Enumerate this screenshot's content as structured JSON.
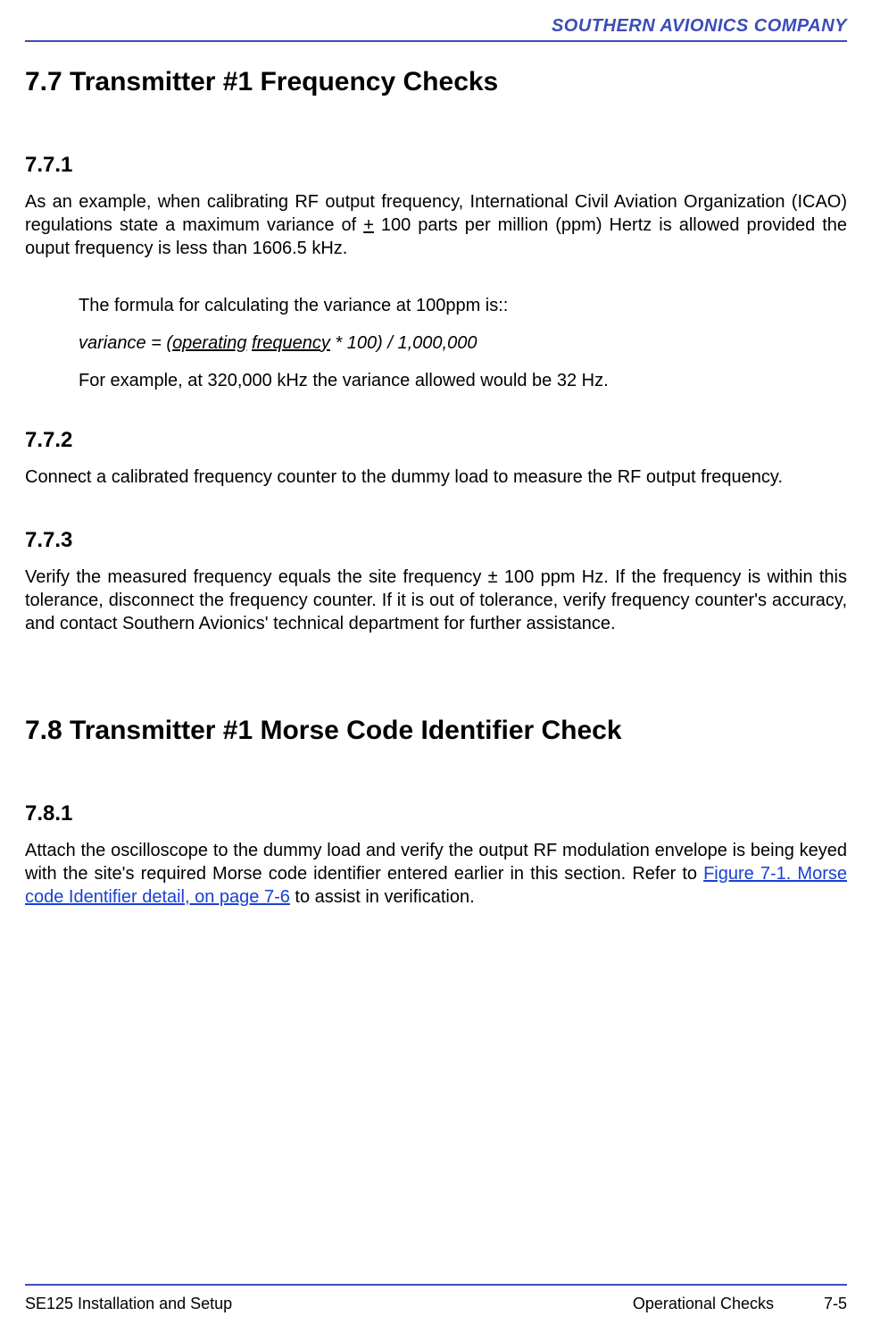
{
  "colors": {
    "rule": "#3b4db8",
    "header_text": "#3b4db8",
    "body_text": "#000000",
    "link": "#1a3fd6",
    "background": "#ffffff"
  },
  "header": {
    "company": "SOUTHERN AVIONICS COMPANY"
  },
  "s77": {
    "heading": "7.7  Transmitter #1 Frequency Checks",
    "s1": {
      "num": "7.7.1",
      "p1a": "As an example, when calibrating RF output frequency, International Civil Aviation Organization (ICAO) regulations state a maximum variance of ",
      "pm": "+",
      "p1b": " 100 parts per million (ppm) Hertz is allowed provided the ouput frequency is less than 1606.5 kHz.",
      "f1": "The formula for calculating the variance at 100ppm is::",
      "f2a": "variance = (",
      "f2u1": "operating",
      "f2sp": " ",
      "f2u2": "frequency",
      "f2b": " * 100) / 1,000,000",
      "f3": "For example, at 320,000 kHz the variance allowed would be 32 Hz."
    },
    "s2": {
      "num": "7.7.2",
      "p": "Connect a calibrated frequency counter to the dummy load to measure the RF output frequency."
    },
    "s3": {
      "num": "7.7.3",
      "p": "Verify the measured frequency equals the site frequency ± 100 ppm Hz.  If the frequency is within this tolerance, disconnect the frequency counter.  If it is out of tolerance, verify frequency counter's accuracy, and contact Southern Avionics' technical department for further assistance."
    }
  },
  "s78": {
    "heading": "7.8  Transmitter #1 Morse Code Identifier Check",
    "s1": {
      "num": "7.8.1",
      "p1a": "Attach the oscilloscope to the dummy load and verify the output RF modulation envelope is being keyed with the site's required Morse code identifier entered earlier in this section. Refer to ",
      "link": "Figure 7-1. Morse code Identifier detail, on page 7-6",
      "p1b": " to assist in verification."
    }
  },
  "footer": {
    "left": "SE125 Installation and Setup",
    "center": "Operational Checks",
    "right": "7-5"
  }
}
